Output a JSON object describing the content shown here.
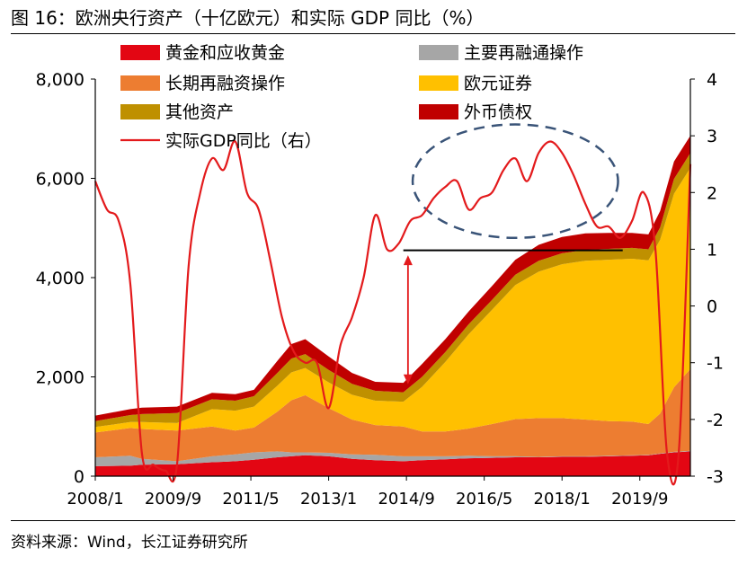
{
  "title": "图 16：欧洲央行资产（十亿欧元）和实际 GDP 同比（%）",
  "source": "资料来源：Wind，长江证券研究所",
  "chart_data": {
    "type": "area",
    "title": "欧洲央行资产（十亿欧元）和实际 GDP 同比（%）",
    "xlabel": "",
    "ylabel_left": "十亿欧元",
    "ylabel_right": "%",
    "ylim_left": [
      0,
      8000
    ],
    "ylim_right": [
      -3,
      4
    ],
    "y_ticks_left": [
      "0",
      "2,000",
      "4,000",
      "6,000",
      "8,000"
    ],
    "y_ticks_right": [
      "-3",
      "-2",
      "-1",
      "0",
      "1",
      "2",
      "3",
      "4"
    ],
    "x_ticks": [
      "2008/1",
      "2009/9",
      "2011/5",
      "2013/1",
      "2014/9",
      "2016/5",
      "2018/1",
      "2019/9"
    ],
    "x_range": [
      2008.0,
      2020.75
    ],
    "grid": false,
    "legend_position": "top-left",
    "colors": {
      "gold": "#e30613",
      "mro": "#a6a6a6",
      "ltro": "#ed7d31",
      "securities": "#ffc000",
      "other": "#bf9000",
      "fx": "#c00000",
      "gdp": "#e31a1c",
      "ellipse": "#3a5478",
      "arrow": "#e31a1c",
      "hline": "#000000"
    },
    "legend": [
      {
        "key": "gold",
        "label": "黄金和应收黄金",
        "kind": "box"
      },
      {
        "key": "mro",
        "label": "主要再融通操作",
        "kind": "box"
      },
      {
        "key": "ltro",
        "label": "长期再融资操作",
        "kind": "box"
      },
      {
        "key": "securities",
        "label": "欧元证券",
        "kind": "box"
      },
      {
        "key": "other",
        "label": "其他资产",
        "kind": "box"
      },
      {
        "key": "fx",
        "label": "外币债权",
        "kind": "box"
      },
      {
        "key": "gdp",
        "label": "实际GDP同比（右）",
        "kind": "line"
      }
    ],
    "x": [
      2008.0,
      2008.75,
      2009.0,
      2009.75,
      2010.5,
      2011.0,
      2011.4,
      2011.9,
      2012.2,
      2012.5,
      2013.0,
      2013.5,
      2014.0,
      2014.6,
      2015.0,
      2015.5,
      2016.0,
      2016.5,
      2017.0,
      2017.5,
      2018.0,
      2018.5,
      2019.0,
      2019.5,
      2019.85,
      2020.1,
      2020.4,
      2020.75
    ],
    "stack_order": [
      "gold",
      "mro",
      "ltro",
      "securities",
      "other",
      "fx"
    ],
    "series": [
      {
        "key": "gold",
        "name": "黄金和应收黄金",
        "values": [
          200,
          210,
          230,
          240,
          280,
          300,
          330,
          380,
          400,
          420,
          400,
          350,
          320,
          300,
          320,
          340,
          360,
          370,
          380,
          380,
          390,
          390,
          400,
          410,
          420,
          450,
          480,
          500
        ]
      },
      {
        "key": "mro",
        "name": "主要再融通操作",
        "values": [
          180,
          200,
          120,
          60,
          120,
          140,
          150,
          120,
          80,
          60,
          70,
          90,
          110,
          100,
          80,
          60,
          50,
          30,
          20,
          10,
          10,
          10,
          10,
          10,
          10,
          10,
          10,
          10
        ]
      },
      {
        "key": "ltro",
        "name": "长期再融资操作",
        "values": [
          500,
          560,
          600,
          620,
          600,
          480,
          500,
          800,
          1050,
          1150,
          900,
          700,
          600,
          600,
          500,
          500,
          550,
          650,
          750,
          780,
          770,
          740,
          700,
          680,
          620,
          800,
          1300,
          1650
        ]
      },
      {
        "key": "securities",
        "name": "欧元证券",
        "values": [
          110,
          120,
          140,
          150,
          350,
          400,
          420,
          520,
          560,
          550,
          520,
          500,
          490,
          500,
          900,
          1400,
          1900,
          2300,
          2700,
          2950,
          3100,
          3200,
          3250,
          3280,
          3300,
          3500,
          3900,
          4050
        ]
      },
      {
        "key": "other",
        "name": "其他资产",
        "values": [
          120,
          140,
          160,
          200,
          200,
          200,
          210,
          260,
          280,
          280,
          250,
          220,
          200,
          190,
          200,
          200,
          200,
          200,
          210,
          220,
          220,
          220,
          220,
          220,
          220,
          250,
          300,
          300
        ]
      },
      {
        "key": "fx",
        "name": "外币债权",
        "values": [
          110,
          120,
          130,
          130,
          130,
          130,
          130,
          240,
          290,
          300,
          270,
          220,
          180,
          190,
          260,
          260,
          260,
          280,
          300,
          320,
          330,
          330,
          320,
          300,
          300,
          330,
          350,
          350
        ]
      }
    ],
    "gdp_yoy": {
      "name": "实际GDP同比（右）",
      "axis": "right",
      "x": [
        2008.0,
        2008.25,
        2008.5,
        2008.75,
        2009.0,
        2009.25,
        2009.5,
        2009.75,
        2010.0,
        2010.25,
        2010.5,
        2010.75,
        2011.0,
        2011.25,
        2011.5,
        2011.75,
        2012.0,
        2012.25,
        2012.5,
        2012.75,
        2013.0,
        2013.25,
        2013.5,
        2013.75,
        2014.0,
        2014.25,
        2014.5,
        2014.75,
        2015.0,
        2015.25,
        2015.5,
        2015.75,
        2016.0,
        2016.25,
        2016.5,
        2016.75,
        2017.0,
        2017.25,
        2017.5,
        2017.75,
        2018.0,
        2018.25,
        2018.5,
        2018.75,
        2019.0,
        2019.25,
        2019.5,
        2019.75,
        2020.0,
        2020.25,
        2020.5,
        2020.75
      ],
      "values": [
        2.2,
        1.7,
        1.5,
        0.4,
        -2.6,
        -2.8,
        -2.9,
        -2.8,
        0.7,
        2.0,
        2.6,
        2.4,
        2.9,
        2.0,
        1.7,
        0.8,
        -0.2,
        -0.8,
        -1.0,
        -1.0,
        -1.8,
        -0.7,
        -0.2,
        0.5,
        1.6,
        1.0,
        1.1,
        1.5,
        1.6,
        1.9,
        2.1,
        2.2,
        1.7,
        1.9,
        2.0,
        2.4,
        2.6,
        2.2,
        2.7,
        2.9,
        2.7,
        2.3,
        1.8,
        1.4,
        1.4,
        1.2,
        1.5,
        2.0,
        1.0,
        -2.6,
        -2.6,
        2.5
      ]
    },
    "annotations": [
      {
        "type": "ellipse",
        "style": "dashed",
        "x_center": 2017.0,
        "y_center_right": 2.2,
        "x_radius": 2.2,
        "y_radius_right": 1.0
      },
      {
        "type": "hline",
        "x_start": 2014.6,
        "x_end": 2019.3,
        "y_left": 4550
      },
      {
        "type": "double_arrow",
        "x": 2014.7,
        "y_from_left": 1850,
        "y_to_left": 4450
      }
    ]
  }
}
